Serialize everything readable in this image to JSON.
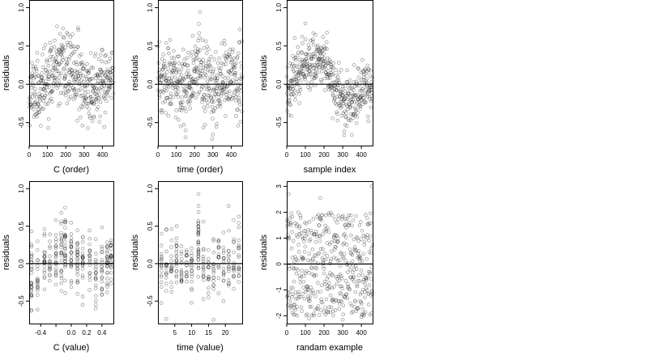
{
  "chart_data": [
    {
      "type": "scatter",
      "xlabel": "C (order)",
      "ylabel": "residuals",
      "xlim": [
        0,
        460
      ],
      "ylim": [
        -0.8,
        1.1
      ],
      "xticks": [
        0,
        100,
        200,
        300,
        400
      ],
      "xtick_labels": [
        "0",
        "100",
        "200",
        "300",
        "400"
      ],
      "yticks": [
        -0.5,
        0.0,
        0.5,
        1.0
      ],
      "ytick_labels": [
        "-0.5",
        "0.0",
        "0.5",
        "1.0"
      ],
      "hline": 0,
      "n_points": 460,
      "seed": 11,
      "pattern": "wave",
      "noise_sd": 0.22,
      "profile": [
        [
          0,
          -0.05
        ],
        [
          60,
          -0.1
        ],
        [
          130,
          0.15
        ],
        [
          200,
          0.2
        ],
        [
          260,
          0.12
        ],
        [
          330,
          -0.1
        ],
        [
          400,
          -0.02
        ],
        [
          460,
          0.05
        ]
      ]
    },
    {
      "type": "scatter",
      "xlabel": "time (order)",
      "ylabel": "residuals",
      "xlim": [
        0,
        460
      ],
      "ylim": [
        -0.8,
        1.1
      ],
      "xticks": [
        0,
        100,
        200,
        300,
        400
      ],
      "xtick_labels": [
        "0",
        "100",
        "200",
        "300",
        "400"
      ],
      "yticks": [
        -0.5,
        0.0,
        0.5,
        1.0
      ],
      "ytick_labels": [
        "-0.5",
        "0.0",
        "0.5",
        "1.0"
      ],
      "hline": 0,
      "n_points": 460,
      "seed": 23,
      "pattern": "wave",
      "noise_sd": 0.25,
      "profile": [
        [
          0,
          0.0
        ],
        [
          80,
          0.05
        ],
        [
          150,
          -0.05
        ],
        [
          200,
          0.25
        ],
        [
          260,
          0.0
        ],
        [
          330,
          -0.15
        ],
        [
          400,
          0.15
        ],
        [
          460,
          0.0
        ]
      ]
    },
    {
      "type": "scatter",
      "xlabel": "sample index",
      "ylabel": "residuals",
      "xlim": [
        0,
        460
      ],
      "ylim": [
        -0.8,
        1.1
      ],
      "xticks": [
        0,
        100,
        200,
        300,
        400
      ],
      "xtick_labels": [
        "0",
        "100",
        "200",
        "300",
        "400"
      ],
      "yticks": [
        -0.5,
        0.0,
        0.5,
        1.0
      ],
      "ytick_labels": [
        "-0.5",
        "0.0",
        "0.5",
        "1.0"
      ],
      "hline": 0,
      "n_points": 460,
      "seed": 37,
      "pattern": "wave",
      "noise_sd": 0.17,
      "profile": [
        [
          0,
          -0.1
        ],
        [
          60,
          0.2
        ],
        [
          120,
          0.3
        ],
        [
          190,
          0.35
        ],
        [
          240,
          0.05
        ],
        [
          300,
          -0.2
        ],
        [
          360,
          -0.25
        ],
        [
          420,
          0.0
        ],
        [
          460,
          -0.15
        ]
      ]
    },
    {
      "type": "scatter",
      "xlabel": "C (value)",
      "ylabel": "residuals",
      "xlim": [
        -0.55,
        0.55
      ],
      "ylim": [
        -0.8,
        1.1
      ],
      "xticks": [
        -0.4,
        0.0,
        0.2,
        0.4
      ],
      "xtick_labels": [
        "-0.4",
        "0.0",
        "0.2",
        "0.4"
      ],
      "minor_xticks": [
        -0.2
      ],
      "yticks": [
        -0.5,
        0.0,
        0.5,
        1.0
      ],
      "ytick_labels": [
        "-0.5",
        "0.0",
        "0.5",
        "1.0"
      ],
      "hline": 0,
      "seed": 51,
      "pattern": "columns",
      "columns": [
        {
          "x": -0.52,
          "n": 28,
          "mean": -0.2,
          "sd": 0.22
        },
        {
          "x": -0.44,
          "n": 18,
          "mean": -0.1,
          "sd": 0.2
        },
        {
          "x": -0.35,
          "n": 22,
          "mean": 0.05,
          "sd": 0.22
        },
        {
          "x": -0.28,
          "n": 16,
          "mean": 0.1,
          "sd": 0.2
        },
        {
          "x": -0.2,
          "n": 22,
          "mean": 0.05,
          "sd": 0.2
        },
        {
          "x": -0.13,
          "n": 24,
          "mean": 0.15,
          "sd": 0.22
        },
        {
          "x": -0.08,
          "n": 30,
          "mean": 0.25,
          "sd": 0.25
        },
        {
          "x": 0.0,
          "n": 24,
          "mean": 0.0,
          "sd": 0.22
        },
        {
          "x": 0.08,
          "n": 26,
          "mean": 0.05,
          "sd": 0.22
        },
        {
          "x": 0.15,
          "n": 22,
          "mean": -0.05,
          "sd": 0.2
        },
        {
          "x": 0.24,
          "n": 18,
          "mean": 0.05,
          "sd": 0.2
        },
        {
          "x": 0.32,
          "n": 20,
          "mean": -0.1,
          "sd": 0.2
        },
        {
          "x": 0.4,
          "n": 20,
          "mean": -0.05,
          "sd": 0.2
        },
        {
          "x": 0.47,
          "n": 26,
          "mean": 0.0,
          "sd": 0.2
        },
        {
          "x": 0.52,
          "n": 22,
          "mean": 0.05,
          "sd": 0.2
        }
      ]
    },
    {
      "type": "scatter",
      "xlabel": "time (value)",
      "ylabel": "residuals",
      "xlim": [
        0,
        25
      ],
      "ylim": [
        -0.8,
        1.1
      ],
      "xticks": [
        5,
        10,
        15,
        20
      ],
      "xtick_labels": [
        "5",
        "10",
        "15",
        "20"
      ],
      "yticks": [
        -0.5,
        0.0,
        0.5,
        1.0
      ],
      "ytick_labels": [
        "-0.5",
        "0.0",
        "0.5",
        "1.0"
      ],
      "hline": 0,
      "seed": 67,
      "pattern": "columns",
      "columns": [
        {
          "x": 1,
          "n": 16,
          "mean": -0.05,
          "sd": 0.22
        },
        {
          "x": 2.5,
          "n": 16,
          "mean": -0.1,
          "sd": 0.22
        },
        {
          "x": 4,
          "n": 16,
          "mean": 0.0,
          "sd": 0.2
        },
        {
          "x": 5.5,
          "n": 20,
          "mean": 0.05,
          "sd": 0.2
        },
        {
          "x": 7,
          "n": 16,
          "mean": 0.0,
          "sd": 0.2
        },
        {
          "x": 8.5,
          "n": 16,
          "mean": -0.05,
          "sd": 0.2
        },
        {
          "x": 10,
          "n": 18,
          "mean": -0.05,
          "sd": 0.2
        },
        {
          "x": 12,
          "n": 34,
          "mean": 0.25,
          "sd": 0.25
        },
        {
          "x": 13.5,
          "n": 16,
          "mean": 0.0,
          "sd": 0.2
        },
        {
          "x": 15,
          "n": 16,
          "mean": -0.1,
          "sd": 0.22
        },
        {
          "x": 16.5,
          "n": 16,
          "mean": -0.05,
          "sd": 0.22
        },
        {
          "x": 18,
          "n": 16,
          "mean": 0.05,
          "sd": 0.2
        },
        {
          "x": 19.5,
          "n": 16,
          "mean": 0.0,
          "sd": 0.22
        },
        {
          "x": 21,
          "n": 16,
          "mean": 0.05,
          "sd": 0.22
        },
        {
          "x": 22.5,
          "n": 16,
          "mean": 0.1,
          "sd": 0.25
        },
        {
          "x": 24,
          "n": 18,
          "mean": 0.05,
          "sd": 0.25
        }
      ]
    },
    {
      "type": "scatter",
      "xlabel": "randam example",
      "ylabel": "residuals",
      "xlim": [
        0,
        460
      ],
      "ylim": [
        -2.3,
        3.2
      ],
      "xticks": [
        0,
        100,
        200,
        300,
        400
      ],
      "xtick_labels": [
        "0",
        "100",
        "200",
        "300",
        "400"
      ],
      "yticks": [
        -2,
        -1,
        0,
        1,
        2,
        3
      ],
      "ytick_labels": [
        "-2",
        "-1",
        "0",
        "1",
        "2",
        "3"
      ],
      "hline": 0,
      "n_points": 460,
      "seed": 89,
      "pattern": "uniform",
      "range": [
        -2.0,
        2.0
      ],
      "outliers": [
        [
          10,
          2.7
        ],
        [
          455,
          3.0
        ],
        [
          180,
          2.55
        ],
        [
          120,
          -2.1
        ],
        [
          300,
          -2.15
        ],
        [
          400,
          -2.05
        ]
      ]
    }
  ]
}
